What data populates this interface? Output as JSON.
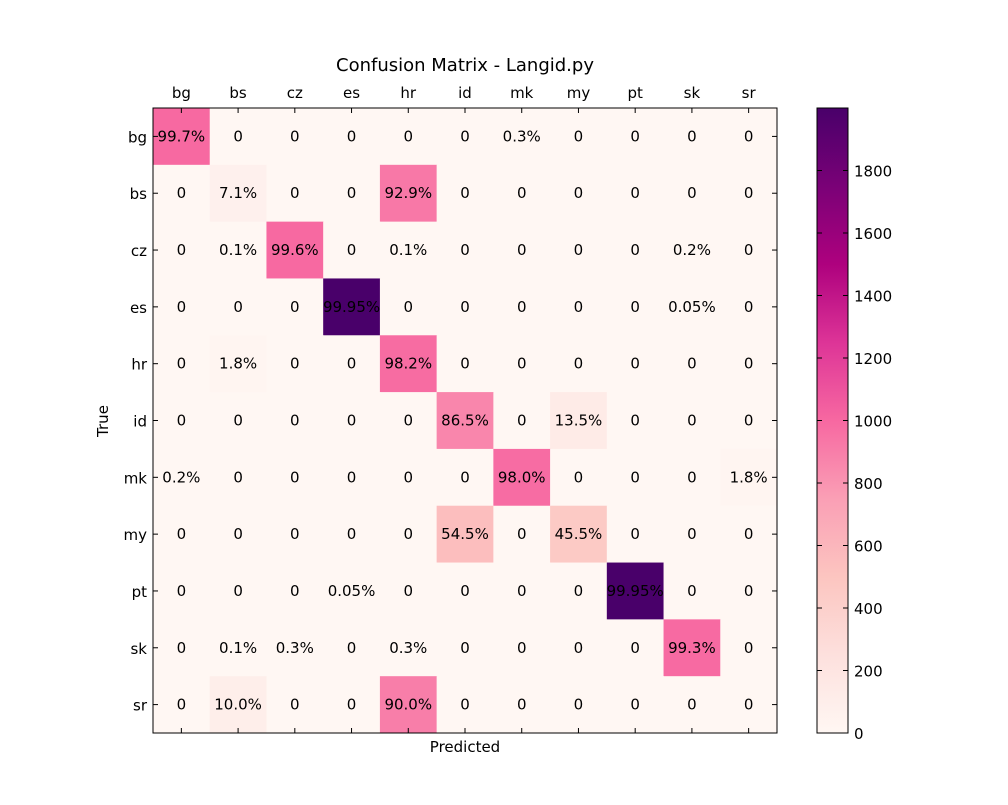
{
  "chart_data": {
    "type": "heatmap",
    "title": "Confusion Matrix - Langid.py",
    "xlabel": "Predicted",
    "ylabel": "True",
    "categories_x": [
      "bg",
      "bs",
      "cz",
      "es",
      "hr",
      "id",
      "mk",
      "my",
      "pt",
      "sk",
      "sr"
    ],
    "categories_y": [
      "bg",
      "bs",
      "cz",
      "es",
      "hr",
      "id",
      "mk",
      "my",
      "pt",
      "sk",
      "sr"
    ],
    "cell_labels": [
      [
        "99.7%",
        "0",
        "0",
        "0",
        "0",
        "0",
        "0.3%",
        "0",
        "0",
        "0",
        "0"
      ],
      [
        "0",
        "7.1%",
        "0",
        "0",
        "92.9%",
        "0",
        "0",
        "0",
        "0",
        "0",
        "0"
      ],
      [
        "0",
        "0.1%",
        "99.6%",
        "0",
        "0.1%",
        "0",
        "0",
        "0",
        "0",
        "0.2%",
        "0"
      ],
      [
        "0",
        "0",
        "0",
        "99.95%",
        "0",
        "0",
        "0",
        "0",
        "0",
        "0.05%",
        "0"
      ],
      [
        "0",
        "1.8%",
        "0",
        "0",
        "98.2%",
        "0",
        "0",
        "0",
        "0",
        "0",
        "0"
      ],
      [
        "0",
        "0",
        "0",
        "0",
        "0",
        "86.5%",
        "0",
        "13.5%",
        "0",
        "0",
        "0"
      ],
      [
        "0.2%",
        "0",
        "0",
        "0",
        "0",
        "0",
        "98.0%",
        "0",
        "0",
        "0",
        "1.8%"
      ],
      [
        "0",
        "0",
        "0",
        "0",
        "0",
        "54.5%",
        "0",
        "45.5%",
        "0",
        "0",
        "0"
      ],
      [
        "0",
        "0",
        "0",
        "0.05%",
        "0",
        "0",
        "0",
        "0",
        "99.95%",
        "0",
        "0"
      ],
      [
        "0",
        "0.1%",
        "0.3%",
        "0",
        "0.3%",
        "0",
        "0",
        "0",
        "0",
        "99.3%",
        "0"
      ],
      [
        "0",
        "10.0%",
        "0",
        "0",
        "90.0%",
        "0",
        "0",
        "0",
        "0",
        "0",
        "0"
      ]
    ],
    "values": [
      [
        997,
        0,
        0,
        0,
        0,
        0,
        3,
        0,
        0,
        0,
        0
      ],
      [
        0,
        71,
        0,
        0,
        929,
        0,
        0,
        0,
        0,
        0,
        0
      ],
      [
        0,
        1,
        996,
        0,
        1,
        0,
        0,
        0,
        0,
        2,
        0
      ],
      [
        0,
        0,
        0,
        1999,
        0,
        0,
        0,
        0,
        0,
        1,
        0
      ],
      [
        0,
        18,
        0,
        0,
        982,
        0,
        0,
        0,
        0,
        0,
        0
      ],
      [
        0,
        0,
        0,
        0,
        0,
        865,
        0,
        135,
        0,
        0,
        0
      ],
      [
        2,
        0,
        0,
        0,
        0,
        0,
        980,
        0,
        0,
        0,
        18
      ],
      [
        0,
        0,
        0,
        0,
        0,
        545,
        0,
        455,
        0,
        0,
        0
      ],
      [
        0,
        0,
        0,
        1,
        0,
        0,
        0,
        0,
        1999,
        0,
        0
      ],
      [
        0,
        1,
        3,
        0,
        3,
        0,
        0,
        0,
        0,
        993,
        0
      ],
      [
        0,
        100,
        0,
        0,
        900,
        0,
        0,
        0,
        0,
        0,
        0
      ]
    ],
    "colorbar": {
      "colormap": "RdPu",
      "range": [
        0,
        2000
      ],
      "ticks": [
        0,
        200,
        400,
        600,
        800,
        1000,
        1200,
        1400,
        1600,
        1800
      ]
    },
    "x_tick_position": "top",
    "grid": false
  }
}
